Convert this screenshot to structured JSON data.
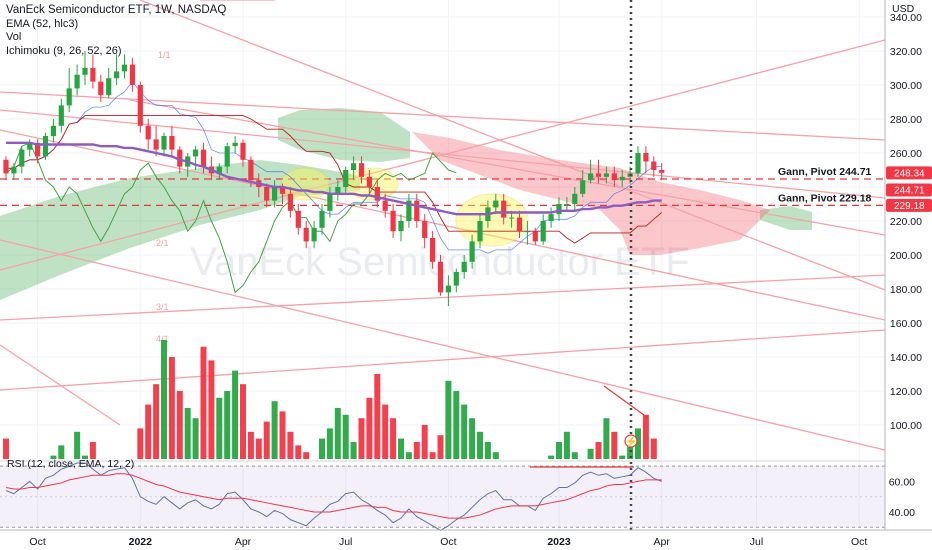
{
  "legend": {
    "title": "VanEck Semiconductor ETF, 1W, NASDAQ",
    "ema": "EMA (52, hlc3)",
    "vol": "Vol",
    "ichimoku": "Ichimoku (9, 26, 52, 26)"
  },
  "watermark": "VanEck Semiconductor ETF",
  "currency": "USD",
  "price_labels": {
    "last": "248.34",
    "pivot_a": "244.71",
    "pivot_b": "229.18"
  },
  "gann": {
    "a": "Gann, Pivot 244.71",
    "b": "Gann, Pivot 229.18"
  },
  "fib_labels": [
    "1/1",
    "2/1",
    "3/1",
    "4/1"
  ],
  "colors": {
    "up": "#26a641",
    "down": "#f23645",
    "ema": "#8e5bbf",
    "rsi_line": "#6272a4",
    "rsi_ma": "#f23645",
    "gann": "#e53935"
  },
  "chart_data": [
    {
      "type": "candlestick",
      "title": "VanEck Semiconductor ETF, 1W, NASDAQ",
      "ylabel": "USD",
      "ylim": [
        80,
        350
      ],
      "yticks": [
        100,
        120,
        140,
        160,
        180,
        200,
        220,
        240,
        260,
        280,
        300,
        320,
        340
      ],
      "xticks": [
        "Oct",
        "2022",
        "Apr",
        "Jul",
        "Oct",
        "2023",
        "Apr",
        "Jul",
        "Oct"
      ],
      "pivots": [
        244.71,
        229.18
      ],
      "last_price": 248.34,
      "open": [
        256,
        248,
        252,
        262,
        266,
        258,
        270,
        276,
        288,
        298,
        306,
        310,
        302,
        294,
        304,
        308,
        312,
        300,
        276,
        268,
        262,
        270,
        262,
        252,
        258,
        262,
        252,
        248,
        252,
        264,
        266,
        256,
        244,
        240,
        232,
        240,
        236,
        226,
        216,
        208,
        216,
        226,
        236,
        240,
        250,
        254,
        246,
        240,
        232,
        226,
        214,
        220,
        232,
        220,
        210,
        196,
        178,
        182,
        190,
        196,
        208,
        220,
        228,
        232,
        222,
        222,
        214,
        214,
        208,
        220,
        224,
        230,
        230,
        236,
        244,
        248,
        246,
        248,
        244,
        246,
        248,
        260,
        255,
        250
      ],
      "close": [
        248,
        252,
        262,
        266,
        258,
        270,
        276,
        288,
        298,
        306,
        310,
        302,
        294,
        304,
        308,
        312,
        300,
        276,
        268,
        262,
        270,
        262,
        252,
        258,
        262,
        252,
        248,
        252,
        264,
        266,
        256,
        244,
        240,
        232,
        240,
        236,
        226,
        216,
        208,
        216,
        226,
        236,
        240,
        250,
        254,
        246,
        240,
        232,
        226,
        214,
        220,
        232,
        220,
        210,
        196,
        178,
        182,
        190,
        196,
        208,
        220,
        228,
        232,
        222,
        222,
        214,
        214,
        208,
        220,
        224,
        230,
        230,
        236,
        244,
        248,
        246,
        248,
        244,
        246,
        248,
        260,
        255,
        250,
        248.34
      ],
      "high": [
        258,
        254,
        264,
        268,
        268,
        272,
        280,
        292,
        310,
        312,
        320,
        318,
        306,
        310,
        318,
        318,
        316,
        302,
        280,
        276,
        272,
        276,
        264,
        260,
        264,
        266,
        258,
        254,
        266,
        270,
        268,
        258,
        248,
        242,
        244,
        242,
        240,
        230,
        220,
        220,
        230,
        240,
        244,
        252,
        258,
        258,
        250,
        244,
        236,
        230,
        224,
        236,
        236,
        224,
        214,
        200,
        188,
        192,
        200,
        212,
        224,
        232,
        236,
        236,
        226,
        226,
        220,
        216,
        224,
        228,
        234,
        234,
        240,
        250,
        256,
        256,
        252,
        252,
        250,
        252,
        264,
        264,
        258,
        254
      ],
      "low": [
        244,
        244,
        248,
        258,
        254,
        256,
        266,
        272,
        284,
        294,
        300,
        298,
        290,
        292,
        300,
        304,
        296,
        272,
        262,
        258,
        258,
        258,
        248,
        246,
        250,
        248,
        244,
        244,
        248,
        260,
        252,
        240,
        234,
        228,
        228,
        230,
        222,
        212,
        204,
        204,
        212,
        222,
        232,
        236,
        244,
        242,
        236,
        228,
        222,
        210,
        208,
        216,
        216,
        204,
        192,
        176,
        170,
        178,
        186,
        192,
        204,
        216,
        224,
        218,
        216,
        210,
        206,
        206,
        206,
        216,
        220,
        226,
        226,
        234,
        242,
        242,
        242,
        240,
        240,
        242,
        246,
        248,
        246,
        244
      ],
      "ema52": [
        266,
        266,
        266,
        266,
        265,
        265,
        265,
        265,
        265,
        265,
        265,
        265,
        264,
        264,
        264,
        263,
        263,
        262,
        261,
        260,
        259,
        258,
        256,
        255,
        253,
        252,
        250,
        248,
        246,
        245,
        244,
        243,
        242,
        241,
        240,
        240,
        239,
        238,
        238,
        237,
        237,
        236,
        236,
        236,
        236,
        235,
        235,
        234,
        233,
        232,
        231,
        230,
        229,
        228,
        227,
        226,
        225,
        224,
        224,
        224,
        224,
        224,
        225,
        225,
        225,
        225,
        225,
        225,
        225,
        225,
        226,
        226,
        226,
        227,
        227,
        228,
        228,
        229,
        229,
        230,
        231,
        231,
        232,
        232
      ],
      "x_labels_weeks": [
        4,
        17,
        30,
        43,
        56,
        70,
        83,
        95,
        108
      ]
    },
    {
      "type": "bar",
      "title": "Vol",
      "values": [
        92,
        78,
        74,
        80,
        64,
        70,
        82,
        88,
        70,
        96,
        82,
        90,
        78,
        66,
        72,
        80,
        76,
        98,
        112,
        124,
        150,
        140,
        120,
        110,
        104,
        146,
        138,
        116,
        120,
        132,
        124,
        96,
        92,
        102,
        114,
        108,
        96,
        88,
        84,
        80,
        92,
        98,
        110,
        106,
        90,
        104,
        116,
        130,
        112,
        104,
        92,
        84,
        90,
        100,
        84,
        94,
        126,
        120,
        112,
        104,
        96,
        90,
        84,
        80,
        74,
        72,
        70,
        62,
        76,
        82,
        90,
        96,
        84,
        80,
        86,
        90,
        104,
        96,
        82,
        88,
        98,
        106,
        92,
        70
      ]
    },
    {
      "type": "line",
      "title": "RSI (12, close, EMA, 12, 2)",
      "ylim": [
        30,
        75
      ],
      "yticks": [
        40,
        60
      ],
      "band": [
        30,
        70
      ],
      "series": [
        {
          "name": "RSI",
          "values": [
            54,
            52,
            56,
            60,
            55,
            62,
            64,
            68,
            70,
            72,
            72,
            68,
            64,
            67,
            68,
            69,
            62,
            50,
            47,
            45,
            50,
            46,
            42,
            46,
            48,
            44,
            42,
            45,
            52,
            53,
            48,
            42,
            40,
            37,
            41,
            39,
            35,
            33,
            31,
            36,
            40,
            45,
            47,
            52,
            53,
            48,
            45,
            41,
            38,
            33,
            36,
            42,
            37,
            34,
            31,
            28,
            31,
            35,
            38,
            43,
            48,
            52,
            54,
            48,
            48,
            44,
            44,
            41,
            49,
            52,
            56,
            56,
            59,
            64,
            66,
            64,
            65,
            62,
            63,
            64,
            69,
            66,
            62,
            60
          ]
        },
        {
          "name": "EMA",
          "values": [
            56,
            55,
            55,
            56,
            56,
            57,
            58,
            59,
            61,
            62,
            63,
            64,
            64,
            64,
            65,
            65,
            64,
            62,
            60,
            58,
            57,
            55,
            53,
            52,
            51,
            50,
            49,
            48,
            49,
            49,
            49,
            48,
            47,
            46,
            45,
            44,
            43,
            42,
            41,
            40,
            40,
            40,
            41,
            42,
            43,
            44,
            44,
            43,
            43,
            41,
            40,
            40,
            40,
            39,
            38,
            37,
            36,
            36,
            36,
            37,
            38,
            40,
            42,
            43,
            44,
            44,
            44,
            44,
            45,
            46,
            47,
            48,
            50,
            52,
            54,
            55,
            57,
            58,
            58,
            59,
            60,
            61,
            61,
            61
          ]
        }
      ]
    }
  ]
}
